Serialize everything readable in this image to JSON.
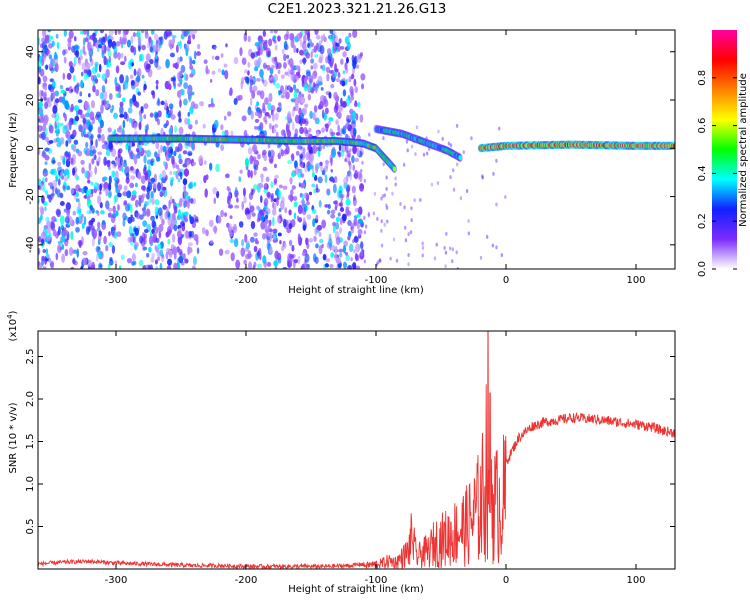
{
  "page_title": "C2E1.2023.321.21.26.G13",
  "chart_data": [
    {
      "type": "heatmap",
      "xlabel": "Height of straight line (km)",
      "ylabel": "Frequency (Hz)",
      "xlim": [
        -360,
        130
      ],
      "ylim": [
        -50,
        49
      ],
      "x_ticks": [
        -300,
        -200,
        -100,
        0,
        100
      ],
      "x_tick_labels": [
        "-300",
        "-200",
        "-100",
        "0",
        "100"
      ],
      "y_ticks": [
        -40,
        -20,
        0,
        20,
        40
      ],
      "y_tick_labels": [
        "-40",
        "-20",
        "0",
        "20",
        "40"
      ],
      "colorbar": {
        "label": "Normalized spectral amplitude",
        "range": [
          0,
          1
        ],
        "ticks": [
          0.0,
          0.2,
          0.4,
          0.6,
          0.8
        ],
        "tick_labels": [
          "0.0",
          "0.2",
          "0.4",
          "0.6",
          "0.8"
        ],
        "colormap": [
          "#ffffff",
          "#7b2cff",
          "#1020ff",
          "#00ffff",
          "#00ff00",
          "#ffff00",
          "#ff8000",
          "#ff0000",
          "#ff00a0"
        ]
      },
      "tracks": [
        {
          "description_points": [
            [
              -305,
              4
            ],
            [
              -250,
              4
            ],
            [
              -200,
              3.5
            ],
            [
              -160,
              3
            ],
            [
              -130,
              3
            ],
            [
              -110,
              2
            ],
            [
              -100,
              0
            ],
            [
              -90,
              -6
            ],
            [
              -85,
              -9
            ]
          ],
          "amplitude": 0.55
        },
        {
          "description_points": [
            [
              -100,
              8
            ],
            [
              -80,
              6
            ],
            [
              -60,
              2
            ],
            [
              -45,
              -1
            ],
            [
              -35,
              -4
            ]
          ],
          "amplitude": 0.45
        },
        {
          "description_points": [
            [
              -20,
              0
            ],
            [
              0,
              1
            ],
            [
              50,
              1.5
            ],
            [
              100,
              1
            ],
            [
              130,
              1
            ]
          ],
          "amplitude": 0.85
        }
      ],
      "noise_x_range": [
        -360,
        -130
      ],
      "grid": false
    },
    {
      "type": "line",
      "xlabel": "Height of straight line (km)",
      "ylabel": "SNR (10 * v/v)",
      "y_multiplier": "(x10",
      "y_multiplier_exp": "4",
      "y_multiplier_close": ")",
      "xlim": [
        -360,
        130
      ],
      "ylim": [
        0,
        2.8
      ],
      "x_ticks": [
        -300,
        -200,
        -100,
        0,
        100
      ],
      "x_tick_labels": [
        "-300",
        "-200",
        "-100",
        "0",
        "100"
      ],
      "y_ticks": [
        0.5,
        1.0,
        1.5,
        2.0,
        2.5
      ],
      "y_tick_labels": [
        "0.5",
        "1.0",
        "1.5",
        "2.0",
        "2.5"
      ],
      "series_color": "#ee3333",
      "x": [
        -360,
        -340,
        -320,
        -300,
        -280,
        -260,
        -240,
        -220,
        -200,
        -180,
        -160,
        -140,
        -120,
        -110,
        -100,
        -95,
        -90,
        -85,
        -80,
        -75,
        -72,
        -70,
        -68,
        -65,
        -60,
        -55,
        -50,
        -45,
        -40,
        -35,
        -30,
        -25,
        -20,
        -16,
        -14,
        -12,
        -10,
        -8,
        -5,
        0,
        5,
        10,
        20,
        30,
        40,
        50,
        60,
        70,
        80,
        90,
        100,
        110,
        120,
        130
      ],
      "y": [
        0.06,
        0.08,
        0.09,
        0.07,
        0.06,
        0.05,
        0.04,
        0.04,
        0.03,
        0.03,
        0.03,
        0.03,
        0.04,
        0.06,
        0.08,
        0.1,
        0.14,
        0.12,
        0.2,
        0.3,
        0.6,
        0.3,
        0.2,
        0.28,
        0.3,
        0.45,
        0.5,
        0.55,
        0.62,
        0.7,
        0.75,
        0.9,
        1.1,
        1.4,
        2.75,
        1.6,
        1.2,
        1.1,
        1.15,
        1.25,
        1.4,
        1.55,
        1.68,
        1.73,
        1.75,
        1.78,
        1.77,
        1.76,
        1.74,
        1.72,
        1.7,
        1.68,
        1.63,
        1.6
      ]
    }
  ]
}
